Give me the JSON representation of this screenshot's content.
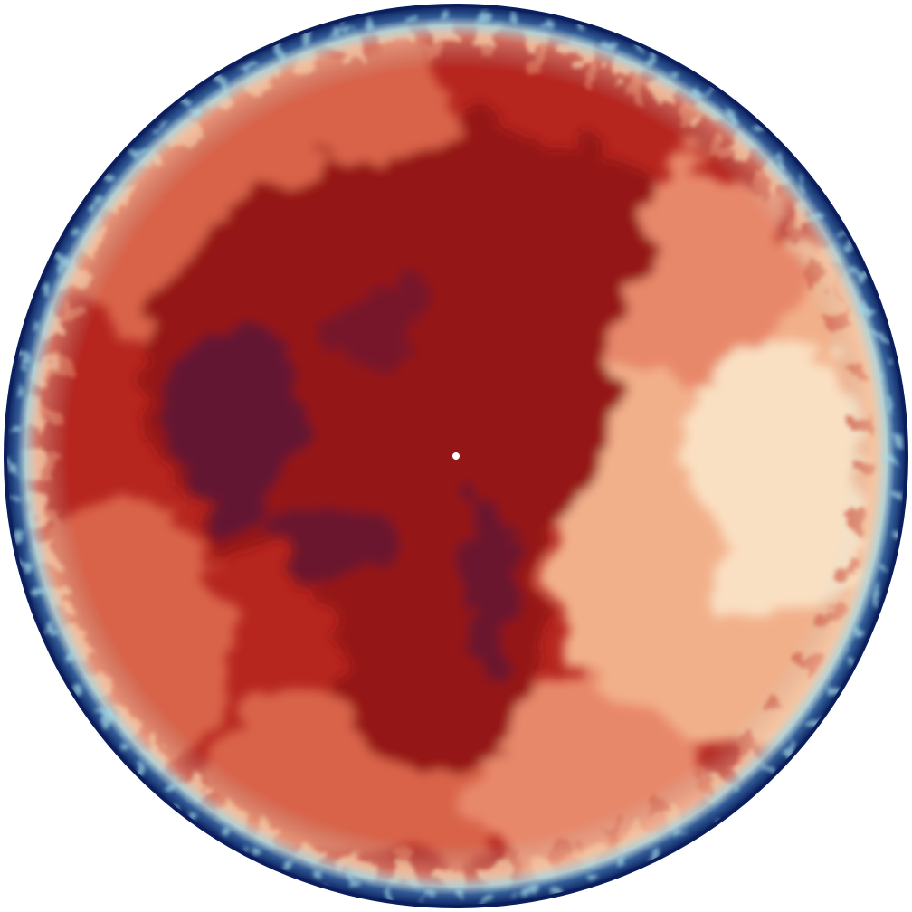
{
  "image": {
    "subject": "circular-field-visualization",
    "colormap": [
      "#0b1f5e",
      "#2a5d9c",
      "#a6dbe8",
      "#fbe6c8",
      "#f2b08a",
      "#d9644a",
      "#b6261f",
      "#951614",
      "#5a1438"
    ],
    "background": "#ffffff",
    "center_marker_color": "#ffffff"
  }
}
